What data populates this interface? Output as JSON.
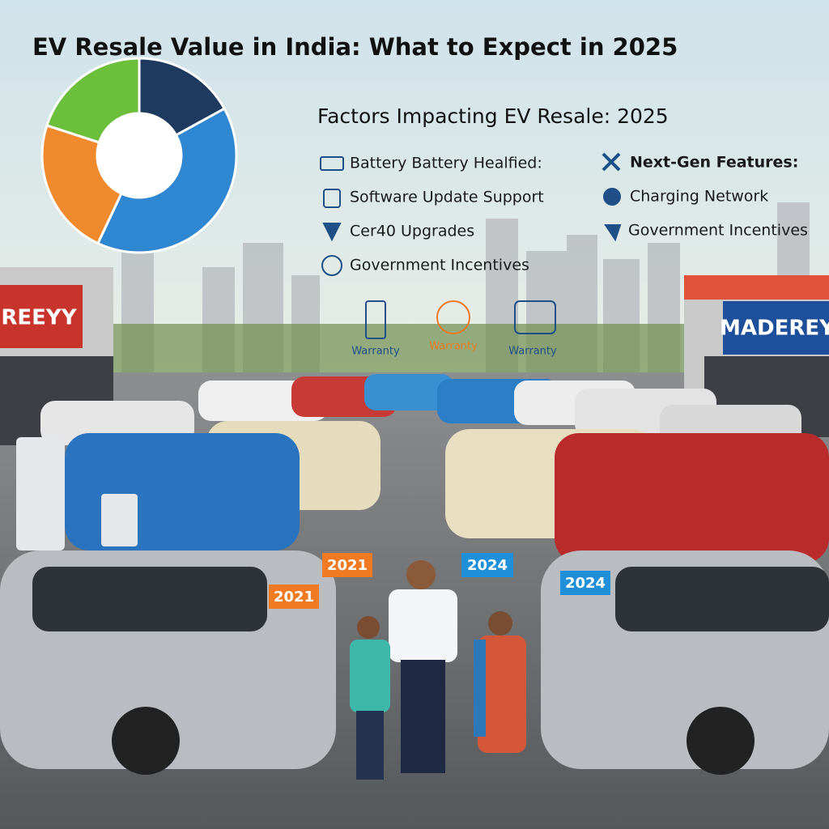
{
  "header": {
    "title": "EV Resale Value in India: What to Expect in 2025"
  },
  "donut": {
    "values": [
      17,
      40,
      23,
      20
    ],
    "colors": [
      "#1f3a5f",
      "#2f86d1",
      "#f08a2c",
      "#6bbf3a"
    ]
  },
  "factors": {
    "title": "Factors Impacting EV Resale: 2025",
    "left": [
      "Battery Battery Healfied:",
      "Software Update Support",
      "Cer40 Upgrades",
      "Government Incentives"
    ],
    "right": [
      "Next-Gen Features:",
      "Charging Network",
      "Government Incentives"
    ]
  },
  "warranty": [
    "Warranty",
    "Warranty",
    "Warranty"
  ],
  "signs": [
    "REEYY",
    "MADEREY"
  ],
  "year_tags": [
    "2021",
    "2021",
    "2024",
    "2024"
  ]
}
